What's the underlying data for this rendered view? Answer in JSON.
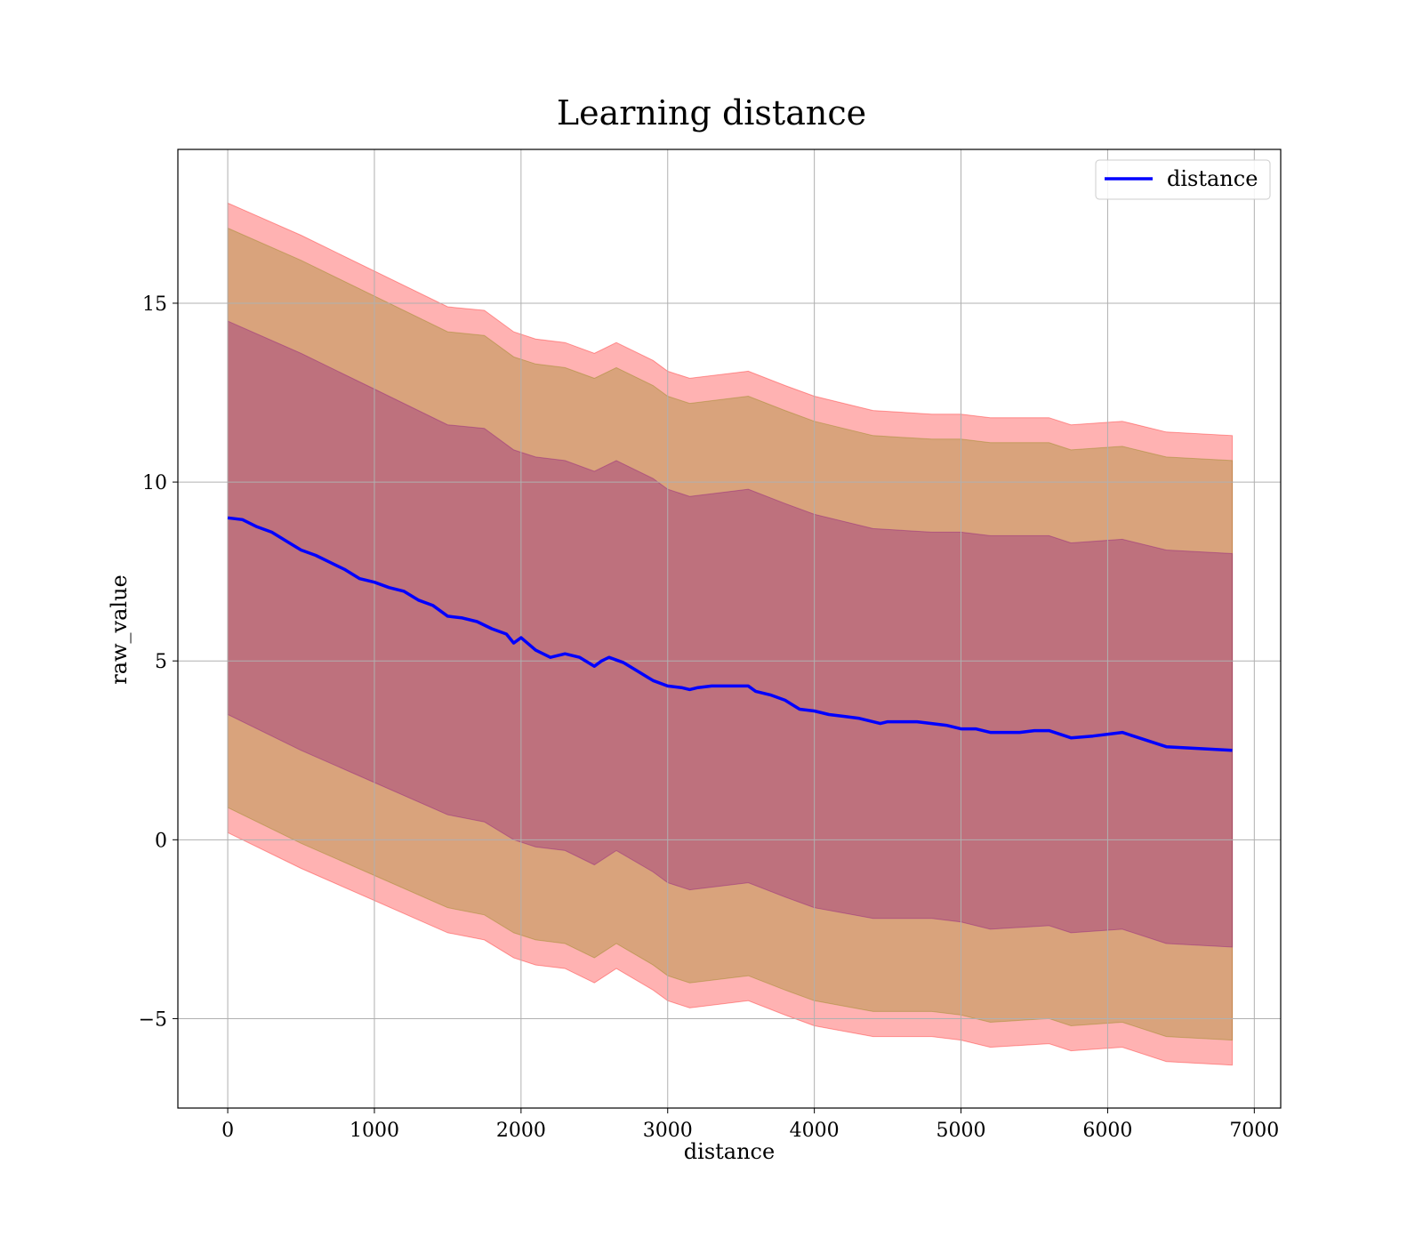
{
  "chart_data": {
    "type": "line",
    "title": "Learning distance",
    "xlabel": "distance",
    "ylabel": "raw_value",
    "xlim": [
      -340,
      7180
    ],
    "ylim": [
      -7.5,
      19.3
    ],
    "xticks": [
      0,
      1000,
      2000,
      3000,
      4000,
      5000,
      6000,
      7000
    ],
    "xtick_labels": [
      "0",
      "1000",
      "2000",
      "3000",
      "4000",
      "5000",
      "6000",
      "7000"
    ],
    "yticks": [
      -5,
      0,
      5,
      10,
      15
    ],
    "ytick_labels": [
      "−5",
      "0",
      "5",
      "10",
      "15"
    ],
    "grid": true,
    "legend": {
      "position": "top-right",
      "entries": [
        "distance"
      ]
    },
    "colors": {
      "line": "#0000ff",
      "band_outer": "#ff0000",
      "band_middle": "#808000",
      "band_inner": "#800080",
      "grid": "#b0b0b0"
    },
    "series": [
      {
        "name": "distance",
        "x": [
          0,
          100,
          200,
          300,
          400,
          500,
          600,
          700,
          800,
          900,
          1000,
          1100,
          1200,
          1300,
          1400,
          1500,
          1600,
          1700,
          1800,
          1900,
          1950,
          2000,
          2100,
          2200,
          2300,
          2400,
          2500,
          2550,
          2600,
          2700,
          2800,
          2900,
          3000,
          3100,
          3150,
          3200,
          3300,
          3400,
          3500,
          3550,
          3600,
          3700,
          3800,
          3900,
          4000,
          4100,
          4200,
          4300,
          4400,
          4450,
          4500,
          4600,
          4700,
          4800,
          4900,
          5000,
          5100,
          5200,
          5300,
          5400,
          5500,
          5600,
          5750,
          5900,
          6100,
          6400,
          6850
        ],
        "values": [
          9.0,
          8.95,
          8.75,
          8.6,
          8.35,
          8.1,
          7.95,
          7.75,
          7.55,
          7.3,
          7.2,
          7.05,
          6.95,
          6.7,
          6.55,
          6.25,
          6.2,
          6.1,
          5.9,
          5.75,
          5.5,
          5.65,
          5.3,
          5.1,
          5.2,
          5.1,
          4.85,
          5.0,
          5.1,
          4.95,
          4.7,
          4.45,
          4.3,
          4.25,
          4.2,
          4.25,
          4.3,
          4.3,
          4.3,
          4.3,
          4.15,
          4.05,
          3.9,
          3.65,
          3.6,
          3.5,
          3.45,
          3.4,
          3.3,
          3.25,
          3.3,
          3.3,
          3.3,
          3.25,
          3.2,
          3.1,
          3.1,
          3.0,
          3.0,
          3.0,
          3.05,
          3.05,
          2.85,
          2.9,
          3.0,
          2.6,
          2.5
        ]
      }
    ],
    "bands": [
      {
        "x": [
          0,
          500,
          1000,
          1500,
          1750,
          1950,
          2100,
          2300,
          2500,
          2650,
          2900,
          3000,
          3150,
          3550,
          3800,
          4000,
          4400,
          4800,
          5000,
          5200,
          5600,
          5750,
          6100,
          6400,
          6850
        ],
        "upper": [
          17.8,
          16.9,
          15.9,
          14.9,
          14.8,
          14.2,
          14.0,
          13.9,
          13.6,
          13.9,
          13.4,
          13.1,
          12.9,
          13.1,
          12.7,
          12.4,
          12.0,
          11.9,
          11.9,
          11.8,
          11.8,
          11.6,
          11.7,
          11.4,
          11.3
        ],
        "lower": [
          0.2,
          -0.8,
          -1.7,
          -2.6,
          -2.8,
          -3.3,
          -3.5,
          -3.6,
          -4.0,
          -3.6,
          -4.2,
          -4.5,
          -4.7,
          -4.5,
          -4.9,
          -5.2,
          -5.5,
          -5.5,
          -5.6,
          -5.8,
          -5.7,
          -5.9,
          -5.8,
          -6.2,
          -6.3
        ]
      },
      {
        "x": [
          0,
          500,
          1000,
          1500,
          1750,
          1950,
          2100,
          2300,
          2500,
          2650,
          2900,
          3000,
          3150,
          3550,
          3800,
          4000,
          4400,
          4800,
          5000,
          5200,
          5600,
          5750,
          6100,
          6400,
          6850
        ],
        "upper": [
          17.1,
          16.2,
          15.2,
          14.2,
          14.1,
          13.5,
          13.3,
          13.2,
          12.9,
          13.2,
          12.7,
          12.4,
          12.2,
          12.4,
          12.0,
          11.7,
          11.3,
          11.2,
          11.2,
          11.1,
          11.1,
          10.9,
          11.0,
          10.7,
          10.6
        ],
        "lower": [
          0.9,
          -0.1,
          -1.0,
          -1.9,
          -2.1,
          -2.6,
          -2.8,
          -2.9,
          -3.3,
          -2.9,
          -3.5,
          -3.8,
          -4.0,
          -3.8,
          -4.2,
          -4.5,
          -4.8,
          -4.8,
          -4.9,
          -5.1,
          -5.0,
          -5.2,
          -5.1,
          -5.5,
          -5.6
        ]
      },
      {
        "x": [
          0,
          500,
          1000,
          1500,
          1750,
          1950,
          2100,
          2300,
          2500,
          2650,
          2900,
          3000,
          3150,
          3550,
          3800,
          4000,
          4400,
          4800,
          5000,
          5200,
          5600,
          5750,
          6100,
          6400,
          6850
        ],
        "upper": [
          14.5,
          13.6,
          12.6,
          11.6,
          11.5,
          10.9,
          10.7,
          10.6,
          10.3,
          10.6,
          10.1,
          9.8,
          9.6,
          9.8,
          9.4,
          9.1,
          8.7,
          8.6,
          8.6,
          8.5,
          8.5,
          8.3,
          8.4,
          8.1,
          8.0
        ],
        "lower": [
          3.5,
          2.5,
          1.6,
          0.7,
          0.5,
          0.0,
          -0.2,
          -0.3,
          -0.7,
          -0.3,
          -0.9,
          -1.2,
          -1.4,
          -1.2,
          -1.6,
          -1.9,
          -2.2,
          -2.2,
          -2.3,
          -2.5,
          -2.4,
          -2.6,
          -2.5,
          -2.9,
          -3.0
        ]
      }
    ]
  }
}
